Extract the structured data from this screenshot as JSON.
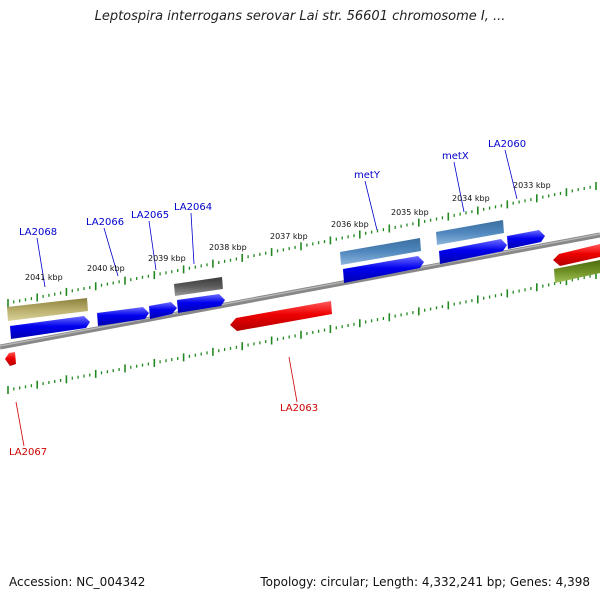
{
  "title": "Leptospira interrogans serovar Lai str. 56601 chromosome I, ...",
  "footer": {
    "accession": "Accession: NC_004342",
    "topology": "Topology: circular; Length: 4,332,241 bp; Genes: 4,398"
  },
  "colors": {
    "forward_label": "#0000cc",
    "reverse_label": "#cc0000",
    "tick": "#228822",
    "backbone": "#808080"
  },
  "kbp_labels": [
    "2041 kbp",
    "2040 kbp",
    "2039 kbp",
    "2038 kbp",
    "2037 kbp",
    "2036 kbp",
    "2035 kbp",
    "2034 kbp",
    "2033 kbp"
  ],
  "gene_labels": [
    {
      "name": "LA2068",
      "strand": "forward"
    },
    {
      "name": "LA2066",
      "strand": "forward"
    },
    {
      "name": "LA2065",
      "strand": "forward"
    },
    {
      "name": "LA2064",
      "strand": "forward"
    },
    {
      "name": "metY",
      "strand": "forward"
    },
    {
      "name": "metX",
      "strand": "forward"
    },
    {
      "name": "LA2060",
      "strand": "forward"
    },
    {
      "name": "LA2063",
      "strand": "reverse"
    },
    {
      "name": "LA2067",
      "strand": "reverse"
    }
  ]
}
